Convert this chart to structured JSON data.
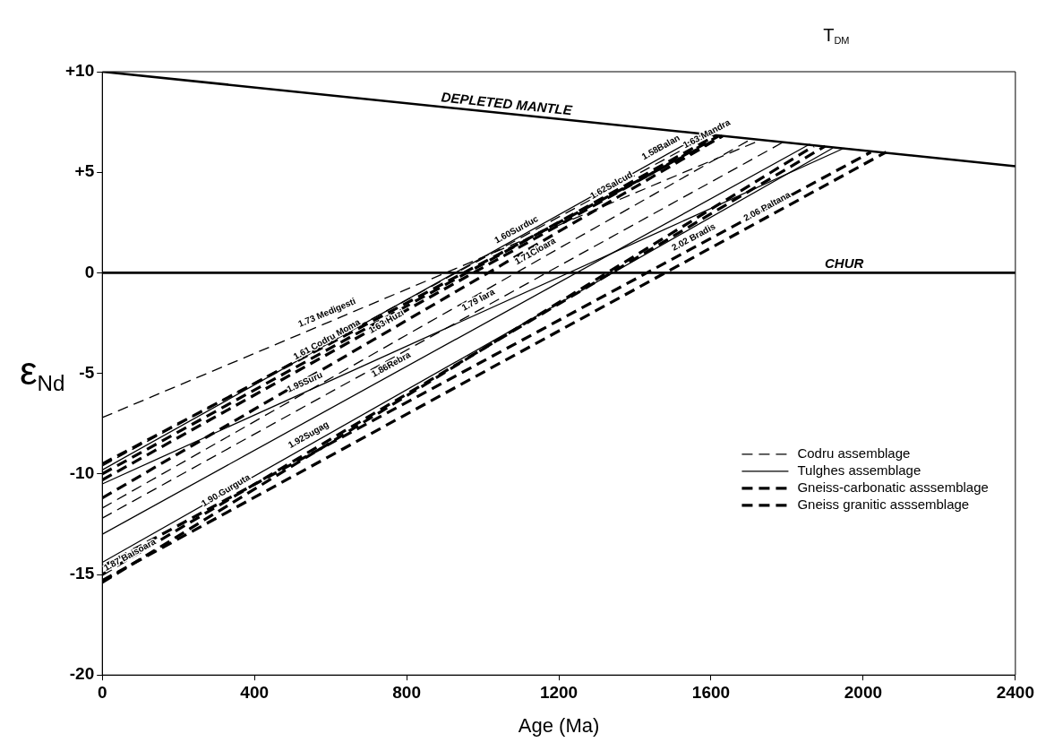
{
  "chart_data": {
    "type": "line",
    "xlabel": "Age (Ma)",
    "ylabel": "ε$_{Nd}$",
    "xlim": [
      0,
      2400
    ],
    "xticks": [
      0,
      400,
      800,
      1200,
      1600,
      2000,
      2400
    ],
    "ylim": [
      -20,
      10
    ],
    "yticks": [
      {
        "value": 10,
        "label": "+10"
      },
      {
        "value": 5,
        "label": "+5"
      },
      0,
      -5,
      -10,
      -15,
      -20
    ],
    "grid": false,
    "legend": "bottom right",
    "series": [
      {
        "name": "Codru assemblage",
        "color": "#000000",
        "line_style": "dashed",
        "x": [
          0,
          1730
        ],
        "values": [
          -7.2,
          6.6
        ]
      },
      {
        "color": "#000000",
        "line_style": "dashed",
        "x": [
          0,
          1710
        ],
        "values": [
          -11.7,
          6.7
        ]
      },
      {
        "color": "#000000",
        "line_style": "dashed",
        "x": [
          0,
          1790
        ],
        "values": [
          -12.2,
          6.5
        ]
      },
      {
        "color": "#000000",
        "line_style": "dashed",
        "x": [
          0,
          1600
        ],
        "values": [
          -9.6,
          6.9
        ]
      },
      {
        "name": "Tulghes assemblage",
        "color": "#000000",
        "line_style": "solid",
        "x": [
          0,
          1950
        ],
        "values": [
          -10.5,
          6.2
        ]
      },
      {
        "color": "#000000",
        "line_style": "solid",
        "x": [
          0,
          1860
        ],
        "values": [
          -13.0,
          6.4
        ]
      },
      {
        "color": "#000000",
        "line_style": "solid",
        "x": [
          0,
          1920
        ],
        "values": [
          -14.4,
          6.2
        ]
      },
      {
        "color": "#000000",
        "line_style": "solid",
        "x": [
          0,
          1580
        ],
        "values": [
          -9.8,
          6.9
        ]
      },
      {
        "name": "Gneiss-carbonatic asssemblage",
        "color": "#000000",
        "line_style": "dashed",
        "x": [
          0,
          1610
        ],
        "values": [
          -10.0,
          6.8
        ]
      },
      {
        "color": "#000000",
        "line_style": "dashed",
        "x": [
          0,
          1630
        ],
        "values": [
          -9.5,
          6.8
        ]
      },
      {
        "color": "#000000",
        "line_style": "dashed",
        "x": [
          0,
          1630
        ],
        "values": [
          -11.2,
          6.8
        ]
      },
      {
        "color": "#000000",
        "line_style": "dashed",
        "x": [
          0,
          1870
        ],
        "values": [
          -15.4,
          6.3
        ]
      },
      {
        "color": "#000000",
        "line_style": "dashed",
        "x": [
          0,
          1900
        ],
        "values": [
          -15.0,
          6.3
        ]
      },
      {
        "color": "#000000",
        "line_style": "dashed",
        "x": [
          0,
          1620
        ],
        "values": [
          -10.3,
          6.8
        ]
      },
      {
        "name": "Gneiss granitic asssemblage",
        "color": "#000000",
        "line_style": "dashed",
        "x": [
          0,
          2020
        ],
        "values": [
          -14.6,
          6.0
        ]
      },
      {
        "color": "#000000",
        "line_style": "dashed",
        "x": [
          0,
          2060
        ],
        "values": [
          -15.3,
          6.0
        ]
      },
      {
        "type": "line",
        "color": "#000000",
        "line_style": "solid",
        "x": [
          0,
          2400
        ],
        "values": [
          10,
          5.3
        ]
      },
      {
        "type": "line",
        "color": "#000000",
        "line_style": "solid",
        "x": [
          0,
          2400
        ],
        "values": [
          0,
          0
        ]
      }
    ],
    "annotations": [
      "T$_{DM}$",
      {
        "text": "DEPLETED MANTLE",
        "x": 1060,
        "y": 7.92
      },
      {
        "text": "CHUR",
        "x": 1950,
        "y": 0
      },
      {
        "text": "1.58Balan",
        "x": 1480,
        "y": 5.84
      },
      {
        "text": "1.63 Mandra",
        "x": 1600,
        "y": 6.5
      },
      {
        "text": "1.60Surduc",
        "x": 1100,
        "y": 1.74
      },
      {
        "text": "1.62Salcud",
        "x": 1350,
        "y": 3.95
      },
      {
        "text": "1.71Cioara",
        "x": 1150,
        "y": 0.67
      },
      {
        "text": "1.79 Iara",
        "x": 1000,
        "y": -1.75
      },
      {
        "text": "1.73 Medigesti",
        "x": 600,
        "y": -2.41
      },
      {
        "text": "1.61 Codru Moma",
        "x": 602,
        "y": -3.72
      },
      {
        "text": "1.63 Huzi",
        "x": 759,
        "y": -2.82
      },
      {
        "text": "1.95Suru",
        "x": 542,
        "y": -5.86
      },
      {
        "text": "1.86Rebra",
        "x": 771,
        "y": -4.96
      },
      {
        "text": "1.92Sugag",
        "x": 554,
        "y": -8.46
      },
      {
        "text": "1.90 Gurguta",
        "x": 337,
        "y": -11.22
      },
      {
        "text": "1.87 Baisoara",
        "x": 84,
        "y": -14.43
      },
      {
        "text": "2.02 Bradis",
        "x": 1566,
        "y": 1.37
      },
      {
        "text": "2.06 Paltana",
        "x": 1759,
        "y": 2.89
      }
    ]
  }
}
